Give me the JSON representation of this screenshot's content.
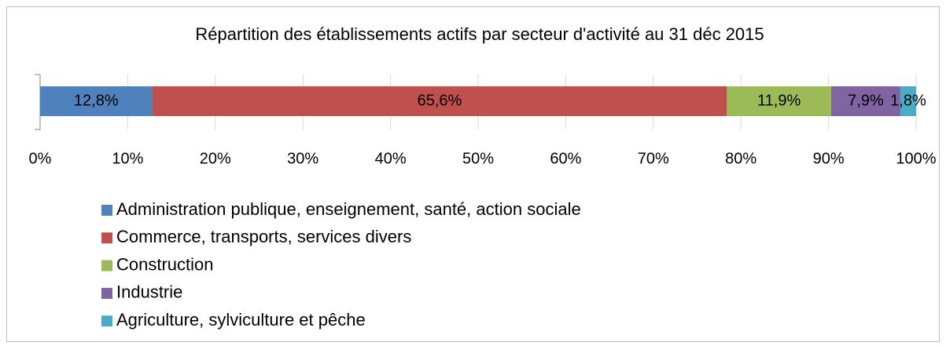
{
  "chart_data": {
    "type": "bar",
    "orientation": "horizontal",
    "stacked": true,
    "title": "Répartition des établissements actifs par secteur d'activité au 31 déc 2015",
    "series": [
      {
        "name": "Administration publique, enseignement, santé, action sociale",
        "color": "#4f81bd",
        "values": [
          12.8
        ],
        "value_labels": [
          "12,8%"
        ]
      },
      {
        "name": "Commerce, transports, services divers",
        "color": "#c0504d",
        "values": [
          65.6
        ],
        "value_labels": [
          "65,6%"
        ]
      },
      {
        "name": "Construction",
        "color": "#9bbb59",
        "values": [
          11.9
        ],
        "value_labels": [
          "11,9%"
        ]
      },
      {
        "name": "Industrie",
        "color": "#8064a2",
        "values": [
          7.9
        ],
        "value_labels": [
          "7,9%"
        ]
      },
      {
        "name": "Agriculture, sylviculture et pêche",
        "color": "#4bacc6",
        "values": [
          1.8
        ],
        "value_labels": [
          "1,8%"
        ]
      }
    ],
    "xlim": [
      0,
      100
    ],
    "xticks": [
      {
        "value": 0,
        "label": "0%"
      },
      {
        "value": 10,
        "label": "10%"
      },
      {
        "value": 20,
        "label": "20%"
      },
      {
        "value": 30,
        "label": "30%"
      },
      {
        "value": 40,
        "label": "40%"
      },
      {
        "value": 50,
        "label": "50%"
      },
      {
        "value": 60,
        "label": "60%"
      },
      {
        "value": 70,
        "label": "70%"
      },
      {
        "value": 80,
        "label": "80%"
      },
      {
        "value": 90,
        "label": "90%"
      },
      {
        "value": 100,
        "label": "100%"
      }
    ],
    "grid": true,
    "legend": "bottom"
  }
}
